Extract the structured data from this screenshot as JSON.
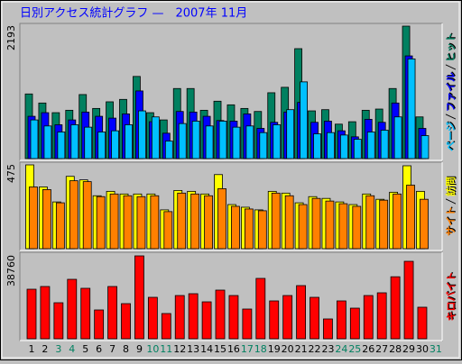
{
  "chart_data": [
    {
      "type": "bar",
      "title": "日別アクセス統計グラフ —　2007年 11月",
      "ylim": [
        0,
        2193
      ],
      "yticks": [
        2193
      ],
      "series": [
        {
          "name": "ヒット",
          "color": "#008060",
          "values": [
            1070,
            920,
            760,
            800,
            1060,
            830,
            940,
            980,
            1360,
            760,
            640,
            1160,
            1160,
            800,
            950,
            890,
            830,
            780,
            1090,
            1180,
            1820,
            790,
            810,
            570,
            610,
            800,
            820,
            1160,
            2193,
            690,
            null
          ]
        },
        {
          "name": "ファイル",
          "color": "#0000ff",
          "values": [
            700,
            760,
            560,
            640,
            770,
            700,
            670,
            740,
            1120,
            610,
            420,
            780,
            770,
            700,
            630,
            620,
            740,
            500,
            600,
            770,
            930,
            600,
            620,
            460,
            360,
            650,
            600,
            920,
            1700,
            500,
            null
          ]
        },
        {
          "name": "ページ",
          "color": "#00c0ff",
          "values": [
            640,
            540,
            440,
            560,
            520,
            440,
            460,
            560,
            790,
            690,
            290,
            580,
            620,
            540,
            620,
            520,
            540,
            430,
            560,
            810,
            1270,
            410,
            430,
            390,
            320,
            440,
            470,
            690,
            1650,
            380,
            null
          ]
        }
      ]
    },
    {
      "type": "bar",
      "ylim": [
        0,
        475
      ],
      "yticks": [
        475
      ],
      "series": [
        {
          "name": "訪問",
          "color": "#ffff00",
          "values": [
            475,
            350,
            265,
            410,
            390,
            300,
            325,
            310,
            310,
            310,
            220,
            330,
            325,
            310,
            420,
            250,
            235,
            220,
            325,
            315,
            260,
            295,
            285,
            265,
            250,
            310,
            280,
            320,
            470,
            325,
            null
          ]
        },
        {
          "name": "サイト",
          "color": "#ff8000",
          "values": [
            350,
            335,
            260,
            385,
            380,
            295,
            310,
            300,
            295,
            300,
            210,
            315,
            310,
            300,
            340,
            240,
            225,
            215,
            315,
            300,
            250,
            285,
            270,
            255,
            240,
            300,
            275,
            310,
            360,
            280,
            null
          ]
        }
      ]
    },
    {
      "type": "bar",
      "ylim": [
        0,
        38760
      ],
      "yticks": [
        38760
      ],
      "categories": [
        "1",
        "2",
        "3",
        "4",
        "5",
        "6",
        "7",
        "8",
        "9",
        "10",
        "11",
        "12",
        "13",
        "14",
        "15",
        "16",
        "17",
        "18",
        "19",
        "20",
        "21",
        "22",
        "23",
        "24",
        "25",
        "26",
        "27",
        "28",
        "29",
        "30",
        "31"
      ],
      "category_colors": [
        "#000000",
        "#000000",
        "#008060",
        "#008060",
        "#000000",
        "#000000",
        "#000000",
        "#000000",
        "#000000",
        "#008060",
        "#008060",
        "#000000",
        "#000000",
        "#000000",
        "#000000",
        "#000000",
        "#008060",
        "#008060",
        "#000000",
        "#000000",
        "#000000",
        "#000000",
        "#000000",
        "#008060",
        "#008060",
        "#000000",
        "#000000",
        "#000000",
        "#000000",
        "#000000",
        "#008060"
      ],
      "series": [
        {
          "name": "キロバイト",
          "color": "#ff0000",
          "values": [
            23170,
            24440,
            16850,
            27800,
            23600,
            13480,
            24440,
            16430,
            38760,
            19380,
            11800,
            20220,
            21070,
            17270,
            22750,
            20220,
            13900,
            28230,
            17700,
            20220,
            24860,
            19380,
            9270,
            17700,
            14320,
            20220,
            21490,
            29000,
            36220,
            14750,
            null
          ]
        }
      ]
    }
  ]
}
